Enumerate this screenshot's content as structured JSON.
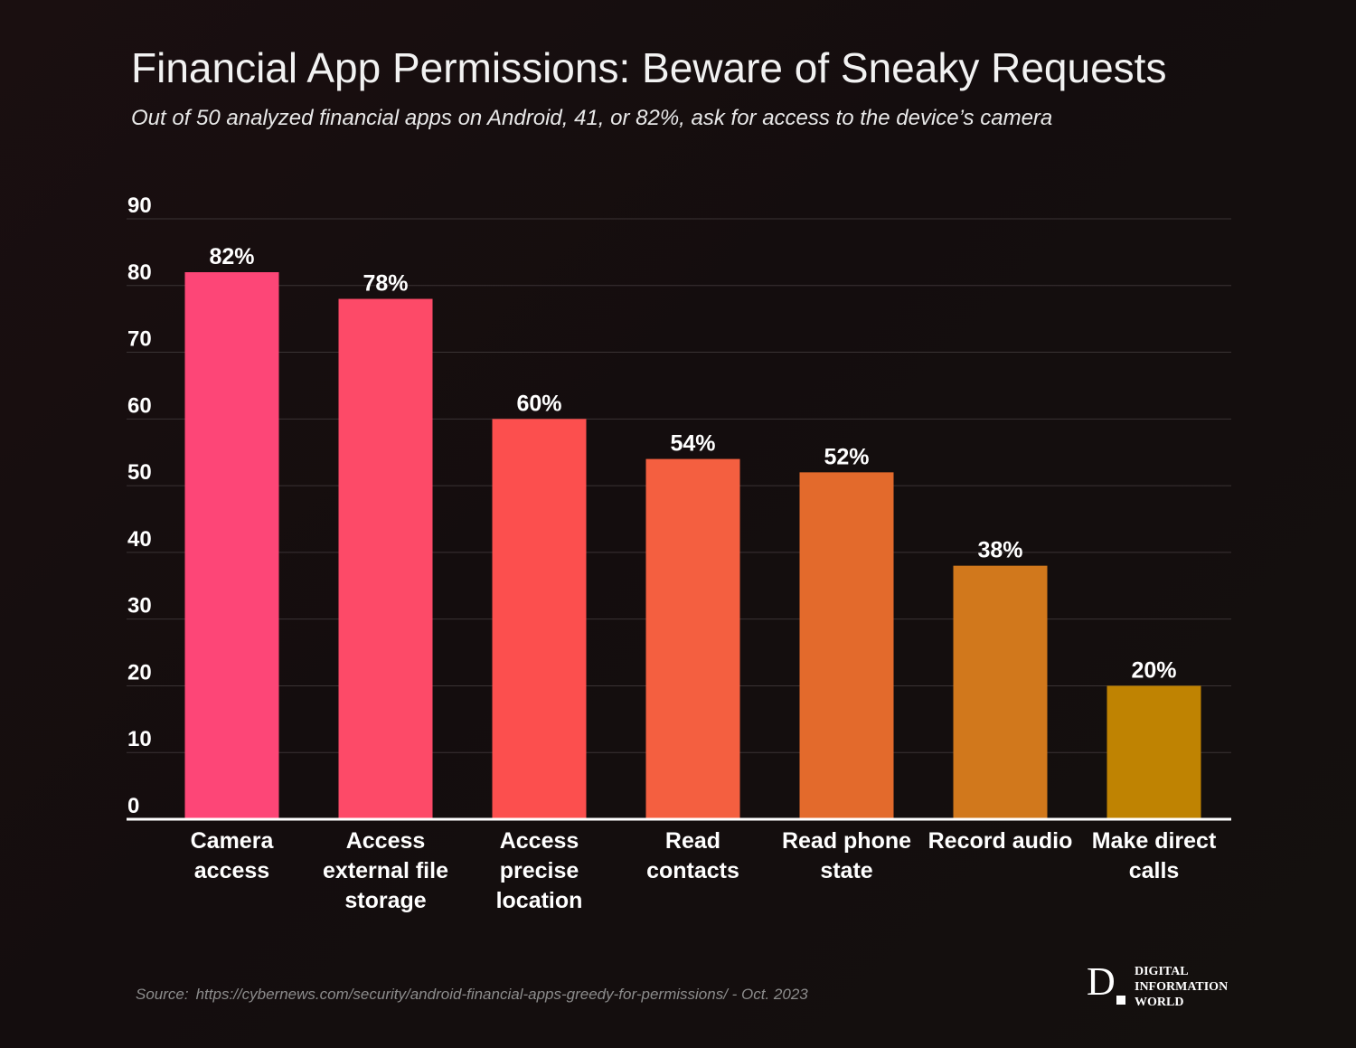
{
  "title": "Financial App Permissions: Beware of Sneaky Requests",
  "subtitle": "Out of 50 analyzed financial apps on Android, 41, or 82%, ask for access to the device’s camera",
  "source": {
    "label": "Source:",
    "text": "https://cybernews.com/security/android-financial-apps-greedy-for-permissions/ - Oct. 2023"
  },
  "logo": {
    "letter": "D",
    "lines": [
      "DIGITAL",
      "INFORMATION",
      "WORLD"
    ]
  },
  "colors": {
    "background": "#150e0f",
    "grid": "#3a3334",
    "axis": "#ffffff",
    "text": "#ffffff",
    "bars": [
      "#fd4677",
      "#fd4a68",
      "#fc4f4e",
      "#f45f40",
      "#e36a2c",
      "#d1781c",
      "#bf8302"
    ]
  },
  "chart_data": {
    "type": "bar",
    "title": "Financial App Permissions: Beware of Sneaky Requests",
    "categories": [
      [
        "Camera",
        "access"
      ],
      [
        "Access",
        "external file",
        "storage"
      ],
      [
        "Access",
        "precise",
        "location"
      ],
      [
        "Read",
        "contacts"
      ],
      [
        "Read phone",
        "state"
      ],
      [
        "Record audio"
      ],
      [
        "Make direct",
        "calls"
      ]
    ],
    "values": [
      82,
      78,
      60,
      54,
      52,
      38,
      20
    ],
    "data_labels": [
      "82%",
      "78%",
      "60%",
      "54%",
      "52%",
      "38%",
      "20%"
    ],
    "yticks": [
      "0",
      "10",
      "20",
      "30",
      "40",
      "50",
      "60",
      "70",
      "80",
      "90"
    ],
    "ylim": [
      0,
      90
    ],
    "xlabel": "",
    "ylabel": "",
    "grid": true
  }
}
